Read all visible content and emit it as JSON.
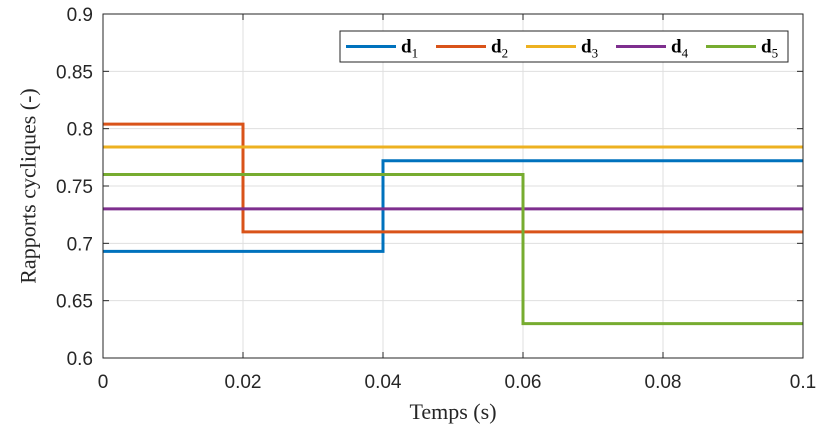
{
  "chart_data": {
    "type": "line",
    "xlabel": "Temps (s)",
    "ylabel": "Rapports cycliques (-)",
    "xlim": [
      0,
      0.1
    ],
    "ylim": [
      0.6,
      0.9
    ],
    "xticks": [
      "0",
      "0.02",
      "0.04",
      "0.06",
      "0.08",
      "0.1"
    ],
    "yticks": [
      "0.6",
      "0.65",
      "0.7",
      "0.75",
      "0.8",
      "0.85",
      "0.9"
    ],
    "grid": true,
    "legend_position": "top-right",
    "series": [
      {
        "name": "d",
        "sub": "1",
        "color": "#0072BD",
        "x": [
          0,
          0.04,
          0.04,
          0.1
        ],
        "y": [
          0.693,
          0.693,
          0.772,
          0.772
        ]
      },
      {
        "name": "d",
        "sub": "2",
        "color": "#D95319",
        "x": [
          0,
          0.02,
          0.02,
          0.1
        ],
        "y": [
          0.804,
          0.804,
          0.71,
          0.71
        ]
      },
      {
        "name": "d",
        "sub": "3",
        "color": "#EDB120",
        "x": [
          0,
          0.1
        ],
        "y": [
          0.784,
          0.784
        ]
      },
      {
        "name": "d",
        "sub": "4",
        "color": "#7E2F8E",
        "x": [
          0,
          0.1
        ],
        "y": [
          0.73,
          0.73
        ]
      },
      {
        "name": "d",
        "sub": "5",
        "color": "#77AC30",
        "x": [
          0,
          0.06,
          0.06,
          0.1
        ],
        "y": [
          0.76,
          0.76,
          0.63,
          0.63
        ]
      }
    ]
  }
}
